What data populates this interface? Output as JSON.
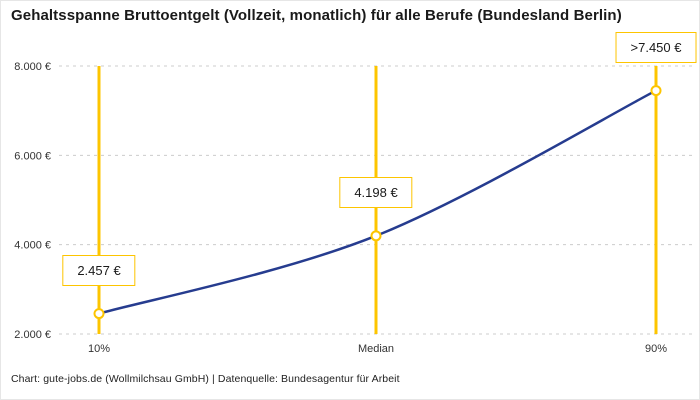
{
  "header": {
    "title": "Gehaltsspanne Bruttoentgelt (Vollzeit, monatlich) für alle Berufe (Bundesland Berlin)"
  },
  "footer": {
    "credit": "Chart: gute-jobs.de (Wollmilchsau GmbH) | Datenquelle: Bundesagentur für Arbeit"
  },
  "colors": {
    "accent_yellow": "#fdc500",
    "line_blue": "#263c8f",
    "grid": "#cccccc",
    "tick_text": "#333333"
  },
  "chart_data": {
    "type": "line",
    "title": "Gehaltsspanne Bruttoentgelt (Vollzeit, monatlich) für alle Berufe (Bundesland Berlin)",
    "categories": [
      "10%",
      "Median",
      "90%"
    ],
    "values": [
      2457,
      4198,
      7450
    ],
    "value_labels": [
      "2.457 €",
      "4.198 €",
      ">7.450 €"
    ],
    "ylim": [
      2000,
      8000
    ],
    "yticks": [
      2000,
      4000,
      6000,
      8000
    ],
    "ytick_labels": [
      "2.000 €",
      "4.000 €",
      "6.000 €",
      "8.000 €"
    ],
    "xlabel": "",
    "ylabel": "",
    "grid": "dashed-horizontal",
    "legend": "none",
    "marker_style": "open-circle"
  }
}
